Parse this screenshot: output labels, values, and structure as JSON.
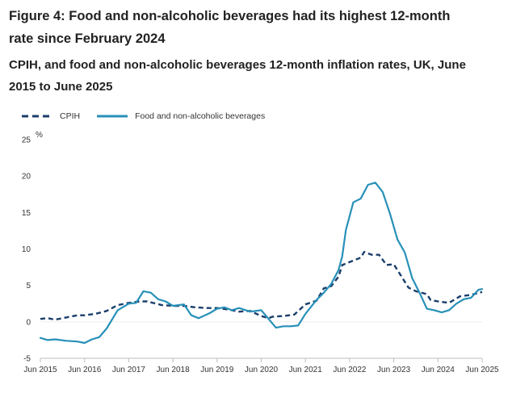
{
  "title": "Figure 4: Food and non-alcoholic beverages had its highest 12-month rate since February 2024",
  "subtitle": "CPIH, and food and non-alcoholic beverages 12-month inflation rates, UK, June 2015 to June 2025",
  "colors": {
    "cpih": "#1b3e6a",
    "food": "#2790b8",
    "axis": "#bdbdbd",
    "grid": "#eeeeee"
  },
  "chart_data": {
    "type": "line",
    "title": "Figure 4: Food and non-alcoholic beverages had its highest 12-month rate since February 2024",
    "subtitle": "CPIH, and food and non-alcoholic beverages 12-month inflation rates, UK, June 2015 to June 2025",
    "ylabel": "%",
    "xlabel": "",
    "ylim": [
      -5,
      25
    ],
    "yticks": [
      "-5",
      "0",
      "5",
      "10",
      "15",
      "20",
      "25"
    ],
    "xlim": [
      "2015-06",
      "2025-06"
    ],
    "xticks": [
      "Jun 2015",
      "Jun 2016",
      "Jun 2017",
      "Jun 2018",
      "Jun 2019",
      "Jun 2020",
      "Jun 2021",
      "Jun 2022",
      "Jun 2023",
      "Jun 2024",
      "Jun 2025"
    ],
    "grid": false,
    "legend_position": "top-left",
    "series": [
      {
        "name": "CPIH",
        "style": "dashed",
        "color": "#1b3e6a",
        "points": [
          [
            "2015-06",
            0.4
          ],
          [
            "2015-08",
            0.5
          ],
          [
            "2015-10",
            0.3
          ],
          [
            "2016-01",
            0.6
          ],
          [
            "2016-04",
            0.9
          ],
          [
            "2016-06",
            0.9
          ],
          [
            "2016-09",
            1.1
          ],
          [
            "2016-12",
            1.5
          ],
          [
            "2017-03",
            2.3
          ],
          [
            "2017-06",
            2.6
          ],
          [
            "2017-09",
            2.8
          ],
          [
            "2017-11",
            2.8
          ],
          [
            "2018-03",
            2.3
          ],
          [
            "2018-06",
            2.2
          ],
          [
            "2018-09",
            2.2
          ],
          [
            "2018-12",
            2.0
          ],
          [
            "2019-03",
            1.9
          ],
          [
            "2019-06",
            1.9
          ],
          [
            "2019-09",
            1.7
          ],
          [
            "2019-12",
            1.4
          ],
          [
            "2020-03",
            1.5
          ],
          [
            "2020-06",
            0.8
          ],
          [
            "2020-08",
            0.5
          ],
          [
            "2020-09",
            0.7
          ],
          [
            "2020-12",
            0.8
          ],
          [
            "2021-03",
            1.0
          ],
          [
            "2021-06",
            2.4
          ],
          [
            "2021-09",
            2.9
          ],
          [
            "2021-11",
            4.6
          ],
          [
            "2022-01",
            4.9
          ],
          [
            "2022-03",
            6.2
          ],
          [
            "2022-04",
            7.8
          ],
          [
            "2022-06",
            8.2
          ],
          [
            "2022-09",
            8.8
          ],
          [
            "2022-10",
            9.6
          ],
          [
            "2022-12",
            9.2
          ],
          [
            "2023-02",
            9.2
          ],
          [
            "2023-04",
            7.8
          ],
          [
            "2023-06",
            7.9
          ],
          [
            "2023-08",
            6.3
          ],
          [
            "2023-10",
            4.7
          ],
          [
            "2023-12",
            4.2
          ],
          [
            "2024-03",
            3.8
          ],
          [
            "2024-04",
            3.0
          ],
          [
            "2024-06",
            2.8
          ],
          [
            "2024-09",
            2.6
          ],
          [
            "2024-12",
            3.5
          ],
          [
            "2025-03",
            3.7
          ],
          [
            "2025-06",
            4.1
          ]
        ]
      },
      {
        "name": "Food and non-alcoholic beverages",
        "style": "solid",
        "color": "#2790b8",
        "points": [
          [
            "2015-06",
            -2.2
          ],
          [
            "2015-08",
            -2.5
          ],
          [
            "2015-10",
            -2.4
          ],
          [
            "2016-01",
            -2.6
          ],
          [
            "2016-04",
            -2.7
          ],
          [
            "2016-06",
            -2.9
          ],
          [
            "2016-08",
            -2.4
          ],
          [
            "2016-10",
            -2.1
          ],
          [
            "2016-12",
            -0.9
          ],
          [
            "2017-03",
            1.6
          ],
          [
            "2017-06",
            2.5
          ],
          [
            "2017-08",
            2.6
          ],
          [
            "2017-10",
            4.2
          ],
          [
            "2017-12",
            4.0
          ],
          [
            "2018-02",
            3.1
          ],
          [
            "2018-04",
            2.8
          ],
          [
            "2018-06",
            2.2
          ],
          [
            "2018-09",
            2.4
          ],
          [
            "2018-11",
            0.9
          ],
          [
            "2019-01",
            0.5
          ],
          [
            "2019-04",
            1.2
          ],
          [
            "2019-06",
            1.8
          ],
          [
            "2019-08",
            2.0
          ],
          [
            "2019-10",
            1.6
          ],
          [
            "2019-12",
            1.9
          ],
          [
            "2020-03",
            1.4
          ],
          [
            "2020-06",
            1.6
          ],
          [
            "2020-08",
            0.4
          ],
          [
            "2020-10",
            -0.8
          ],
          [
            "2020-12",
            -0.6
          ],
          [
            "2021-02",
            -0.6
          ],
          [
            "2021-04",
            -0.5
          ],
          [
            "2021-06",
            1.1
          ],
          [
            "2021-09",
            3.0
          ],
          [
            "2021-11",
            4.0
          ],
          [
            "2022-01",
            5.2
          ],
          [
            "2022-03",
            7.1
          ],
          [
            "2022-04",
            9.0
          ],
          [
            "2022-05",
            12.6
          ],
          [
            "2022-07",
            16.4
          ],
          [
            "2022-09",
            16.9
          ],
          [
            "2022-11",
            18.8
          ],
          [
            "2023-01",
            19.1
          ],
          [
            "2023-03",
            17.8
          ],
          [
            "2023-05",
            14.8
          ],
          [
            "2023-07",
            11.3
          ],
          [
            "2023-09",
            9.5
          ],
          [
            "2023-11",
            6.0
          ],
          [
            "2024-01",
            4.0
          ],
          [
            "2024-03",
            1.8
          ],
          [
            "2024-05",
            1.6
          ],
          [
            "2024-07",
            1.3
          ],
          [
            "2024-09",
            1.6
          ],
          [
            "2024-11",
            2.5
          ],
          [
            "2025-01",
            3.1
          ],
          [
            "2025-03",
            3.3
          ],
          [
            "2025-05",
            4.4
          ],
          [
            "2025-06",
            4.5
          ]
        ]
      }
    ]
  }
}
